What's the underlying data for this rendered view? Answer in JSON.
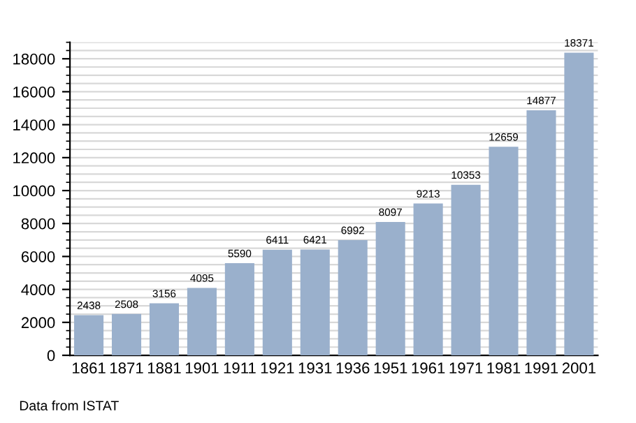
{
  "chart_data": {
    "type": "bar",
    "categories": [
      "1861",
      "1871",
      "1881",
      "1901",
      "1911",
      "1921",
      "1931",
      "1936",
      "1951",
      "1961",
      "1971",
      "1981",
      "1991",
      "2001"
    ],
    "values": [
      2438,
      2508,
      3156,
      4095,
      5590,
      6411,
      6421,
      6992,
      8097,
      9213,
      10353,
      12659,
      14877,
      18371
    ],
    "color": "#9ab0cc",
    "ylim": [
      0,
      19000
    ],
    "yticks": [
      0,
      2000,
      4000,
      6000,
      8000,
      10000,
      12000,
      14000,
      16000,
      18000
    ],
    "grid": "y",
    "data_labels": true,
    "annotations": [
      "Data from ISTAT"
    ]
  }
}
